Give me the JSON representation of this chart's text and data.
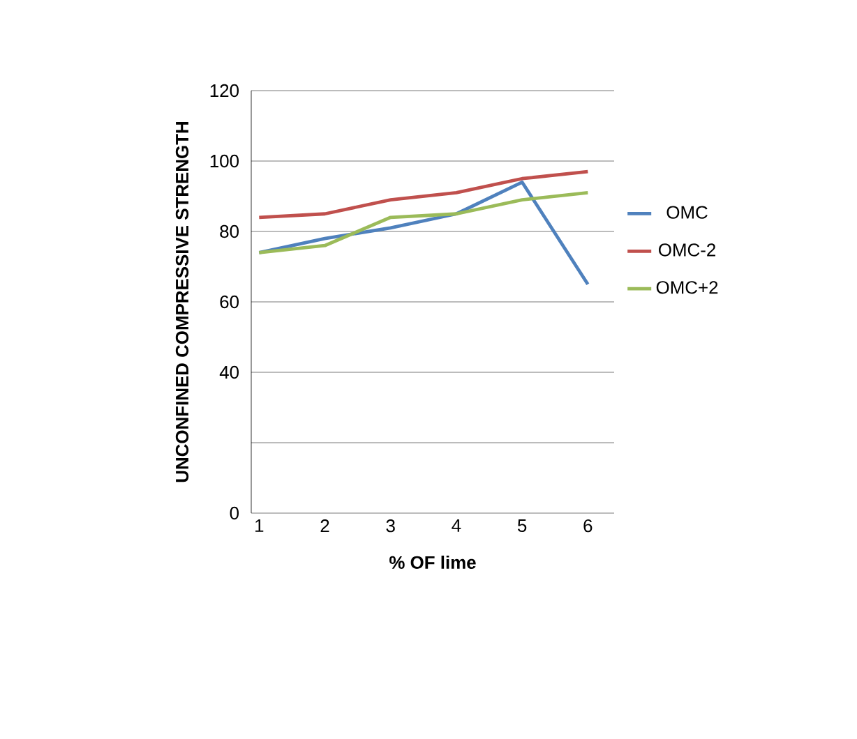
{
  "chart_data": {
    "type": "line",
    "xlabel": "% OF lime",
    "ylabel": "UNCONFINED COMPRESSIVE STRENGTH",
    "categories": [
      "1",
      "2",
      "3",
      "4",
      "5",
      "6"
    ],
    "series": [
      {
        "name": "OMC",
        "color": "#4f81bd",
        "values": [
          74,
          78,
          81,
          85,
          94,
          65
        ]
      },
      {
        "name": "OMC-2",
        "color": "#c0504d",
        "values": [
          84,
          85,
          89,
          91,
          95,
          97
        ]
      },
      {
        "name": "OMC+2",
        "color": "#9bbb59",
        "values": [
          74,
          76,
          84,
          85,
          89,
          91
        ]
      }
    ],
    "ylim": [
      0,
      120
    ],
    "yticks": [
      0,
      {
        "value": 20,
        "label": null
      },
      40,
      60,
      80,
      100,
      120
    ],
    "grid": "y",
    "legend": "right",
    "marker": "none",
    "line_style": "solid"
  }
}
